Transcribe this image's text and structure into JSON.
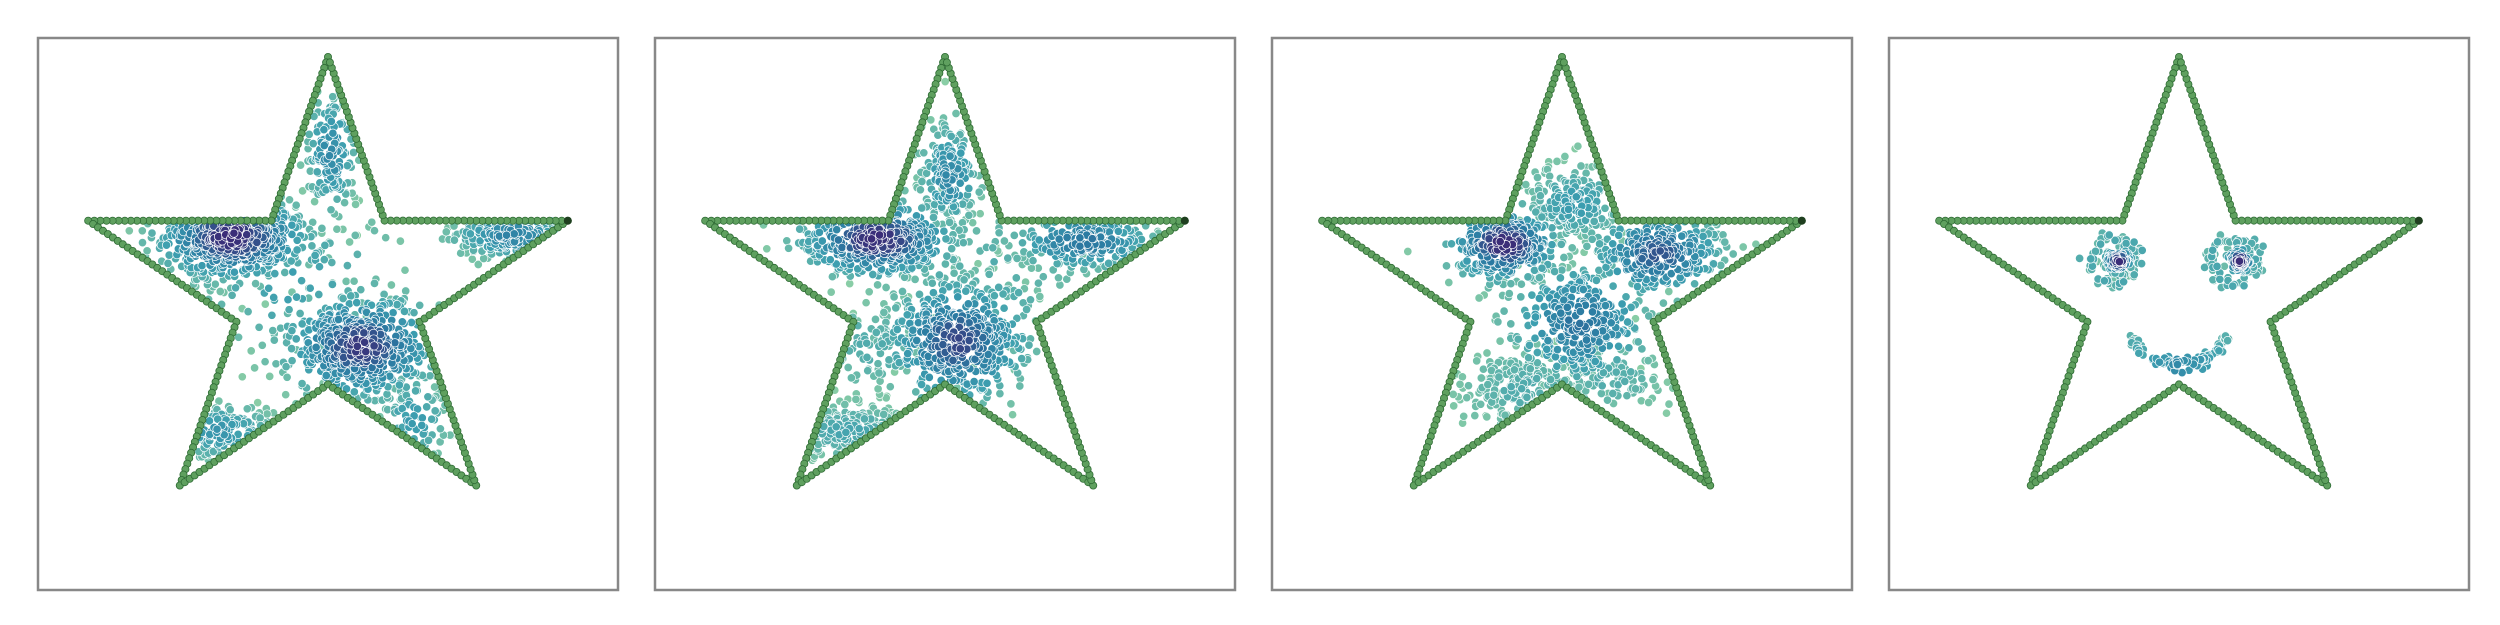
{
  "colors": {
    "background": "#ffffff",
    "frame": "#888888",
    "outline_fill": "#5fa05f",
    "outline_edge": "#2e6b34",
    "outline_end": "#1f3f1f",
    "point_edge": "#ffffff",
    "density_low": "#8fd1a5",
    "density_mid": "#3d9fb0",
    "density_high": "#2b7aa2",
    "density_peak": "#3b2d78"
  },
  "chart_data": [
    {
      "type": "scatter",
      "panel": 1,
      "title": "",
      "xlabel": "",
      "ylabel": "",
      "axes_visible": false,
      "grid": false,
      "xlim": [
        -1.15,
        1.15
      ],
      "ylim": [
        -1.25,
        1.08
      ],
      "outline": {
        "shape": "five-pointed star",
        "outer_radius": 1.0,
        "inner_radius": 0.382,
        "points": 300
      },
      "clusters": [
        {
          "x": -0.38,
          "y": 0.24,
          "spread_x": 0.15,
          "spread_y": 0.09,
          "count": 560,
          "density": 1.0
        },
        {
          "x": 0.13,
          "y": -0.22,
          "spread_x": 0.15,
          "spread_y": 0.11,
          "count": 520,
          "density": 0.95
        },
        {
          "x": 0.01,
          "y": 0.6,
          "spread_x": 0.05,
          "spread_y": 0.13,
          "count": 150,
          "density": 0.6
        },
        {
          "x": 0.73,
          "y": 0.25,
          "spread_x": 0.12,
          "spread_y": 0.05,
          "count": 190,
          "density": 0.65
        },
        {
          "x": -0.44,
          "y": -0.58,
          "spread_x": 0.12,
          "spread_y": 0.06,
          "count": 120,
          "density": 0.5
        },
        {
          "x": 0.34,
          "y": -0.53,
          "spread_x": 0.07,
          "spread_y": 0.1,
          "count": 70,
          "density": 0.45
        },
        {
          "x": -0.15,
          "y": 0.05,
          "spread_x": 0.22,
          "spread_y": 0.18,
          "count": 90,
          "density": 0.4
        }
      ]
    },
    {
      "type": "scatter",
      "panel": 2,
      "title": "",
      "xlabel": "",
      "ylabel": "",
      "axes_visible": false,
      "grid": false,
      "xlim": [
        -1.15,
        1.15
      ],
      "ylim": [
        -1.25,
        1.08
      ],
      "outline": {
        "shape": "five-pointed star",
        "outer_radius": 1.0,
        "inner_radius": 0.382,
        "points": 300
      },
      "clusters": [
        {
          "x": -0.27,
          "y": 0.23,
          "spread_x": 0.15,
          "spread_y": 0.08,
          "count": 450,
          "density": 1.0
        },
        {
          "x": 0.05,
          "y": -0.2,
          "spread_x": 0.14,
          "spread_y": 0.13,
          "count": 460,
          "density": 0.9
        },
        {
          "x": 0.02,
          "y": 0.5,
          "spread_x": 0.06,
          "spread_y": 0.11,
          "count": 170,
          "density": 0.6
        },
        {
          "x": 0.55,
          "y": 0.22,
          "spread_x": 0.14,
          "spread_y": 0.06,
          "count": 210,
          "density": 0.75
        },
        {
          "x": -0.38,
          "y": -0.58,
          "spread_x": 0.14,
          "spread_y": 0.06,
          "count": 180,
          "density": 0.35
        },
        {
          "x": -0.3,
          "y": -0.22,
          "spread_x": 0.12,
          "spread_y": 0.1,
          "count": 80,
          "density": 0.3
        },
        {
          "x": 0.15,
          "y": 0.05,
          "spread_x": 0.25,
          "spread_y": 0.2,
          "count": 80,
          "density": 0.3
        }
      ]
    },
    {
      "type": "scatter",
      "panel": 3,
      "title": "",
      "xlabel": "",
      "ylabel": "",
      "axes_visible": false,
      "grid": false,
      "xlim": [
        -1.15,
        1.15
      ],
      "ylim": [
        -1.25,
        1.08
      ],
      "outline": {
        "shape": "five-pointed star",
        "outer_radius": 1.0,
        "inner_radius": 0.382,
        "points": 300
      },
      "clusters": [
        {
          "x": -0.23,
          "y": 0.21,
          "spread_x": 0.11,
          "spread_y": 0.08,
          "count": 300,
          "density": 1.0
        },
        {
          "x": 0.38,
          "y": 0.17,
          "spread_x": 0.13,
          "spread_y": 0.09,
          "count": 320,
          "density": 0.85
        },
        {
          "x": 0.07,
          "y": -0.12,
          "spread_x": 0.14,
          "spread_y": 0.13,
          "count": 340,
          "density": 0.75
        },
        {
          "x": 0.05,
          "y": 0.38,
          "spread_x": 0.1,
          "spread_y": 0.08,
          "count": 200,
          "density": 0.45
        },
        {
          "x": -0.15,
          "y": -0.4,
          "spread_x": 0.13,
          "spread_y": 0.09,
          "count": 190,
          "density": 0.3
        },
        {
          "x": 0.2,
          "y": -0.35,
          "spread_x": 0.1,
          "spread_y": 0.08,
          "count": 80,
          "density": 0.3
        }
      ]
    },
    {
      "type": "scatter",
      "panel": 4,
      "title": "",
      "xlabel": "",
      "ylabel": "",
      "axes_visible": false,
      "grid": false,
      "xlim": [
        -1.15,
        1.15
      ],
      "ylim": [
        -1.25,
        1.08
      ],
      "outline": {
        "shape": "five-pointed star",
        "outer_radius": 1.0,
        "inner_radius": 0.382,
        "points": 300
      },
      "clusters": [
        {
          "x": -0.24,
          "y": 0.14,
          "spread_x": 0.028,
          "spread_y": 0.028,
          "count": 90,
          "density": 1.0
        },
        {
          "x": 0.24,
          "y": 0.14,
          "spread_x": 0.028,
          "spread_y": 0.028,
          "count": 90,
          "density": 1.0
        }
      ],
      "rings": [
        {
          "x": -0.26,
          "y": 0.14,
          "radius": 0.095,
          "count": 70,
          "density": 0.35
        },
        {
          "x": 0.22,
          "y": 0.14,
          "radius": 0.095,
          "count": 70,
          "density": 0.35
        }
      ],
      "arcs": [
        {
          "x": 0.0,
          "y": -0.1,
          "radius": 0.2,
          "start_deg": 200,
          "end_deg": 340,
          "count": 110,
          "density": 0.55
        }
      ]
    }
  ]
}
